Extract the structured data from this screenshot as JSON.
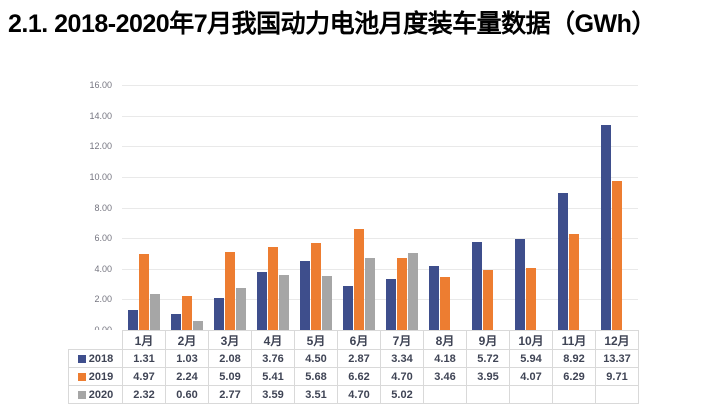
{
  "title": "2.1. 2018-2020年7月我国动力电池月度装车量数据（GWh）",
  "colors": {
    "series_2018": "#3e4e8c",
    "series_2019": "#ed7d31",
    "series_2020": "#a6a6a6",
    "gridline": "#e9e9e9",
    "axis_label": "#757580",
    "table_border": "#d9d9d9",
    "table_text": "#3f4455",
    "title_text": "#000000"
  },
  "chart_data": {
    "type": "bar",
    "title": "",
    "xlabel": "",
    "ylabel": "",
    "ylim": [
      0,
      16
    ],
    "y_ticks": [
      "16.00",
      "14.00",
      "12.00",
      "10.00",
      "8.00",
      "6.00",
      "4.00",
      "2.00",
      "0.00"
    ],
    "grid": "horizontal",
    "legend_position": "data-table-left",
    "categories": [
      "1月",
      "2月",
      "3月",
      "4月",
      "5月",
      "6月",
      "7月",
      "8月",
      "9月",
      "10月",
      "11月",
      "12月"
    ],
    "series": [
      {
        "name": "2018",
        "color": "#3e4e8c",
        "values": [
          1.31,
          1.03,
          2.08,
          3.76,
          4.5,
          2.87,
          3.34,
          4.18,
          5.72,
          5.94,
          8.92,
          13.37
        ],
        "labels": [
          "1.31",
          "1.03",
          "2.08",
          "3.76",
          "4.50",
          "2.87",
          "3.34",
          "4.18",
          "5.72",
          "5.94",
          "8.92",
          "13.37"
        ]
      },
      {
        "name": "2019",
        "color": "#ed7d31",
        "values": [
          4.97,
          2.24,
          5.09,
          5.41,
          5.68,
          6.62,
          4.7,
          3.46,
          3.95,
          4.07,
          6.29,
          9.71
        ],
        "labels": [
          "4.97",
          "2.24",
          "5.09",
          "5.41",
          "5.68",
          "6.62",
          "4.70",
          "3.46",
          "3.95",
          "4.07",
          "6.29",
          "9.71"
        ]
      },
      {
        "name": "2020",
        "color": "#a6a6a6",
        "values": [
          2.32,
          0.6,
          2.77,
          3.59,
          3.51,
          4.7,
          5.02,
          null,
          null,
          null,
          null,
          null
        ],
        "labels": [
          "2.32",
          "0.60",
          "2.77",
          "3.59",
          "3.51",
          "4.70",
          "5.02",
          "",
          "",
          "",
          "",
          ""
        ]
      }
    ]
  }
}
